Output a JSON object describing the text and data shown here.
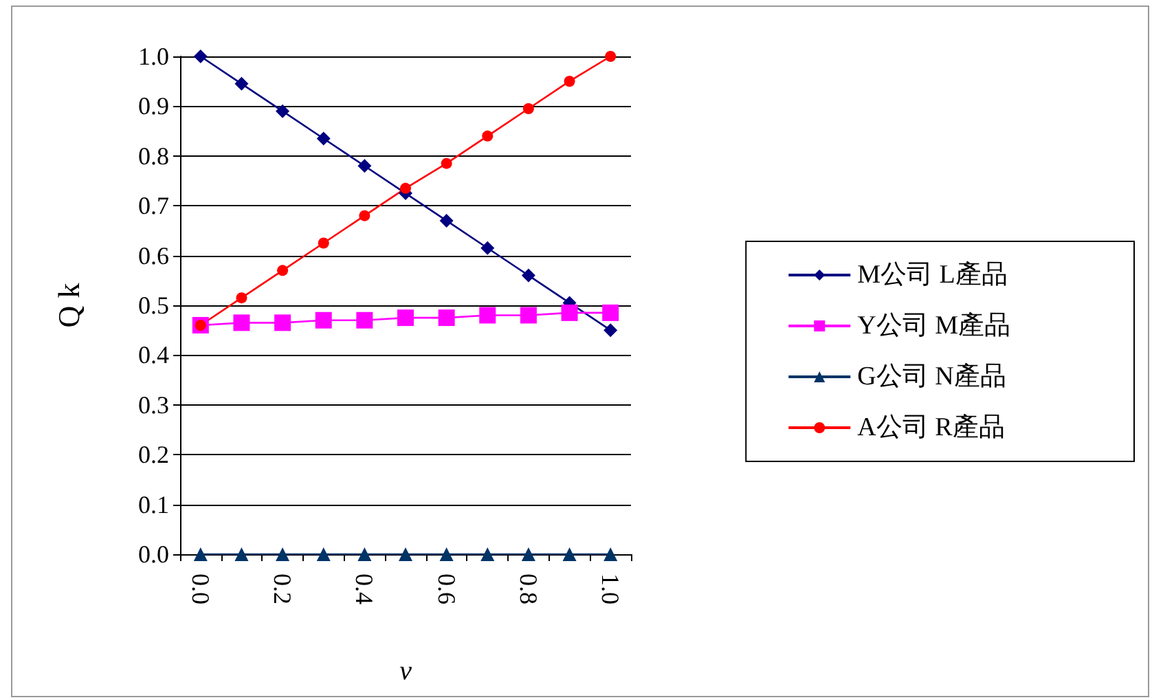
{
  "chart_data": {
    "type": "line",
    "xlabel": "v",
    "ylabel": "Q k",
    "categories": [
      "0.0",
      null,
      "0.2",
      null,
      "0.4",
      null,
      "0.6",
      null,
      "0.8",
      null,
      "1.0"
    ],
    "series": [
      {
        "name": "M公司 L產品",
        "color": "#000080",
        "marker": "diamond",
        "values": [
          1.0,
          0.945,
          0.89,
          0.835,
          0.78,
          0.725,
          0.67,
          0.615,
          0.56,
          0.505,
          0.45
        ]
      },
      {
        "name": "Y公司 M產品",
        "color": "#ff00ff",
        "marker": "square",
        "values": [
          0.46,
          0.465,
          0.465,
          0.47,
          0.47,
          0.475,
          0.475,
          0.48,
          0.48,
          0.485,
          0.485
        ]
      },
      {
        "name": "G公司 N產品",
        "color": "#003366",
        "marker": "triangle",
        "values": [
          0,
          0,
          0,
          0,
          0,
          0,
          0,
          0,
          0,
          0,
          0
        ]
      },
      {
        "name": "A公司 R產品",
        "color": "#ff0000",
        "marker": "circle",
        "values": [
          0.46,
          0.515,
          0.57,
          0.625,
          0.68,
          0.735,
          0.785,
          0.84,
          0.895,
          0.95,
          1.0
        ]
      }
    ],
    "ylim": [
      0,
      1
    ],
    "yticks": [
      {
        "value": 0,
        "label": "0.0"
      },
      0.1,
      0.2,
      0.3,
      0.4,
      0.5,
      0.6,
      0.7,
      0.8,
      0.9,
      {
        "value": 1,
        "label": "1.0"
      }
    ],
    "grid": "y",
    "legend": "right",
    "line_style": "solid"
  }
}
